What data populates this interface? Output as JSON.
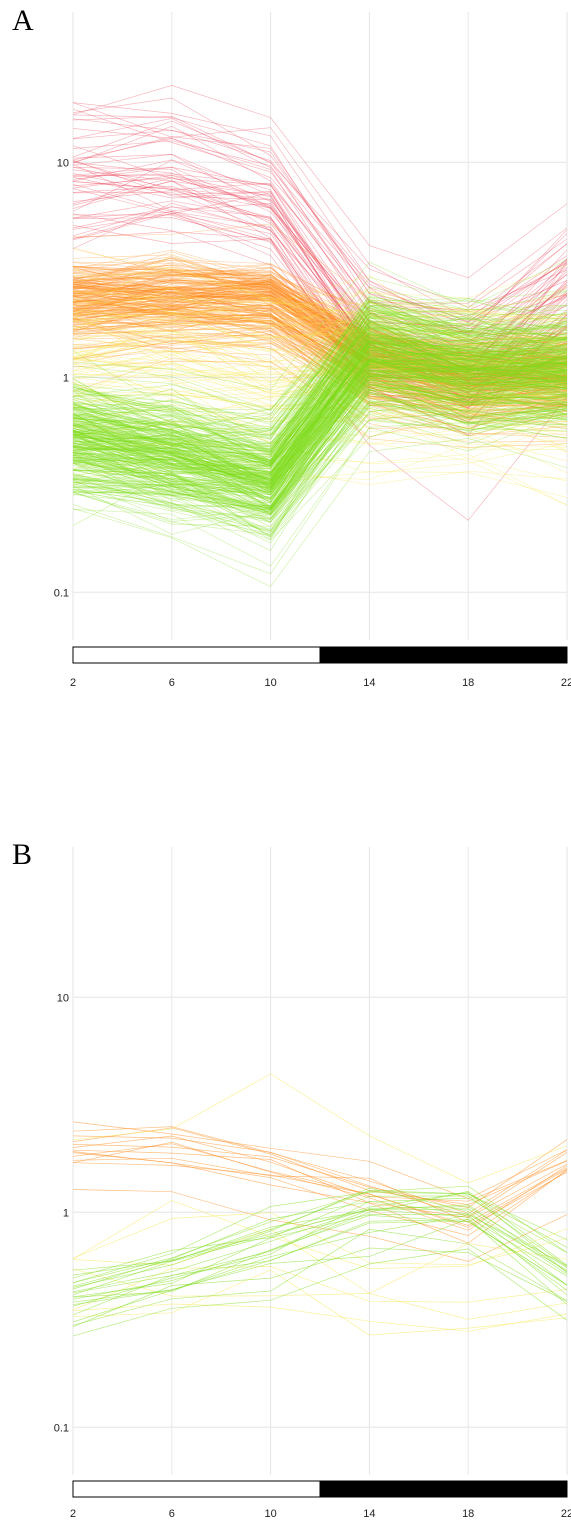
{
  "panels": [
    {
      "label": "A"
    },
    {
      "label": "B"
    }
  ],
  "colors": {
    "grid": "#e6e6e6",
    "high": "#e8334a",
    "mid_high": "#ff8a1a",
    "mid": "#f5e64a",
    "low": "#7edc1a",
    "light_bar": "#ffffff",
    "dark_bar": "#000000"
  },
  "chart_data": [
    {
      "type": "line",
      "panel": "A",
      "title": "",
      "xlabel": "",
      "ylabel": "",
      "x": [
        2,
        6,
        10,
        14,
        18,
        22
      ],
      "x_ticks": [
        "2",
        "6",
        "10",
        "14",
        "18",
        "22"
      ],
      "y_scale": "log",
      "ylim": [
        0.06,
        50
      ],
      "y_ticks": [
        "10",
        "1",
        "0.1"
      ],
      "y_tick_values": [
        10,
        1,
        0.1
      ],
      "grid": true,
      "light_dark_bar": {
        "light": [
          2,
          12
        ],
        "dark": [
          12,
          22
        ]
      },
      "series_groups": [
        {
          "color_key": "high",
          "count": 60,
          "center": [
            8.5,
            8.5,
            6.5,
            1.5,
            1.1,
            2.6
          ],
          "spread": 0.16
        },
        {
          "color_key": "mid_high",
          "count": 220,
          "center": [
            2.2,
            2.3,
            2.2,
            1.15,
            0.95,
            1.0
          ],
          "spread": 0.1
        },
        {
          "color_key": "mid",
          "count": 90,
          "center": [
            1.3,
            1.3,
            1.1,
            1.15,
            1.05,
            1.0
          ],
          "spread": 0.18
        },
        {
          "color_key": "low",
          "count": 320,
          "center": [
            0.5,
            0.42,
            0.32,
            1.25,
            1.05,
            1.05
          ],
          "spread": 0.13
        }
      ]
    },
    {
      "type": "line",
      "panel": "B",
      "title": "",
      "xlabel": "",
      "ylabel": "",
      "x": [
        2,
        6,
        10,
        14,
        18,
        22
      ],
      "x_ticks": [
        "2",
        "6",
        "10",
        "14",
        "18",
        "22"
      ],
      "y_scale": "log",
      "ylim": [
        0.06,
        50
      ],
      "y_ticks": [
        "10",
        "1",
        "0.1"
      ],
      "y_tick_values": [
        10,
        1,
        0.1
      ],
      "grid": true,
      "light_dark_bar": {
        "light": [
          2,
          12
        ],
        "dark": [
          12,
          22
        ]
      },
      "series_groups": [
        {
          "color_key": "mid_high",
          "count": 14,
          "center": [
            2.2,
            2.2,
            1.8,
            1.4,
            1.05,
            1.9
          ],
          "spread": 0.08
        },
        {
          "color_key": "mid",
          "count": 8,
          "center": [
            0.7,
            0.75,
            0.9,
            0.6,
            0.55,
            0.7
          ],
          "spread": 0.2
        },
        {
          "color_key": "low",
          "count": 22,
          "center": [
            0.38,
            0.5,
            0.65,
            0.95,
            1.0,
            0.5
          ],
          "spread": 0.08
        }
      ]
    }
  ]
}
